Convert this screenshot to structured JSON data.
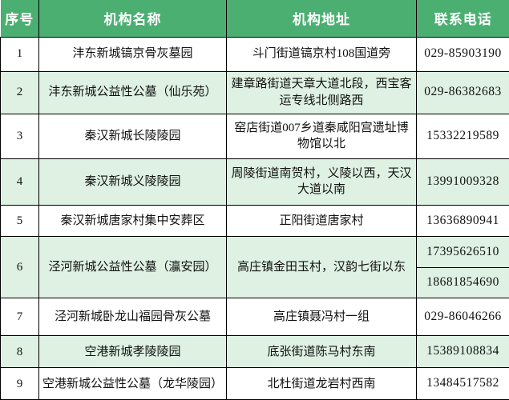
{
  "table": {
    "columns": [
      {
        "label": "序号"
      },
      {
        "label": "机构名称"
      },
      {
        "label": "机构地址"
      },
      {
        "label": "联系电话"
      }
    ],
    "rows": [
      {
        "num": "1",
        "name": "沣东新城镐京骨灰墓园",
        "address": "斗门街道镐京村108国道旁",
        "phones": [
          "029-85903190"
        ]
      },
      {
        "num": "2",
        "name": "沣东新城公益性公墓（仙乐苑）",
        "address": "建章路街道天章大道北段，西宝客运专线北侧路西",
        "phones": [
          "029-86382683"
        ]
      },
      {
        "num": "3",
        "name": "秦汉新城长陵陵园",
        "address": "窑店街道007乡道秦咸阳宫遗址博物馆以北",
        "phones": [
          "15332219589"
        ]
      },
      {
        "num": "4",
        "name": "秦汉新城义陵陵园",
        "address": "周陵街道南贺村，义陵以西，天汉大道以南",
        "phones": [
          "13991009328"
        ]
      },
      {
        "num": "5",
        "name": "秦汉新城唐家村集中安葬区",
        "address": "正阳街道唐家村",
        "phones": [
          "13636890941"
        ]
      },
      {
        "num": "6",
        "name": "泾河新城公益性公墓（灜安园）",
        "address": "高庄镇金田玉村，汉韵七街以东",
        "phones": [
          "17395626510",
          "18681854690"
        ]
      },
      {
        "num": "7",
        "name": "泾河新城卧龙山福园骨灰公墓",
        "address": "高庄镇聂冯村一组",
        "phones": [
          "029-86046266"
        ]
      },
      {
        "num": "8",
        "name": "空港新城孝陵陵园",
        "address": "底张街道陈马村东南",
        "phones": [
          "15389108834"
        ]
      },
      {
        "num": "9",
        "name": "空港新城公益性公墓（龙华陵园）",
        "address": "北杜街道龙岩村西南",
        "phones": [
          "13484517582"
        ]
      }
    ],
    "colors": {
      "header_bg": "#4CAF72",
      "header_text": "#FFFFFF",
      "row_bg": "#FFFFFF",
      "row_alt_bg": "#DEF1E3",
      "border": "#000000"
    }
  }
}
